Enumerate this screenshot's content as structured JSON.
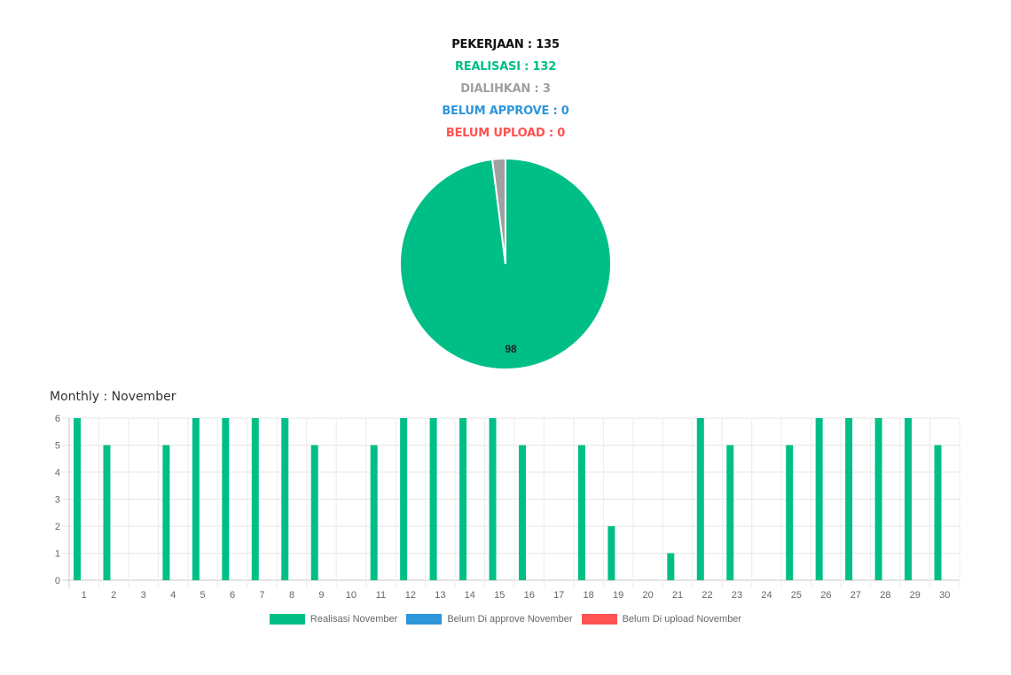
{
  "summary": {
    "pekerjaan": "PEKERJAAN : 135",
    "realisasi": "REALISASI : 132",
    "dialihkan": "DIALIHKAN : 3",
    "belum_approve": "BELUM APPROVE : 0",
    "belum_upload": "BELUM UPLOAD : 0"
  },
  "colors": {
    "realisasi": "#00bf86",
    "dialihkan": "#a0a0a0",
    "belum_approve": "#2d96db",
    "belum_upload": "#ff5252",
    "pekerjaan": "#111111"
  },
  "chart_data": [
    {
      "type": "pie",
      "slices": [
        {
          "name": "Realisasi",
          "value": 98,
          "label": "98",
          "color": "#00bf86"
        },
        {
          "name": "Dialihkan",
          "value": 2,
          "label": "",
          "color": "#a0a0a0"
        }
      ]
    },
    {
      "type": "bar",
      "title": "Monthly : November",
      "categories": [
        "1",
        "2",
        "3",
        "4",
        "5",
        "6",
        "7",
        "8",
        "9",
        "10",
        "11",
        "12",
        "13",
        "14",
        "15",
        "16",
        "17",
        "18",
        "19",
        "20",
        "21",
        "22",
        "23",
        "24",
        "25",
        "26",
        "27",
        "28",
        "29",
        "30"
      ],
      "series": [
        {
          "name": "Realisasi November",
          "color": "#00bf86",
          "values": [
            6,
            5,
            0,
            5,
            6,
            6,
            6,
            6,
            5,
            0,
            5,
            6,
            6,
            6,
            6,
            5,
            0,
            5,
            2,
            0,
            1,
            6,
            5,
            0,
            5,
            6,
            6,
            6,
            6,
            5
          ]
        },
        {
          "name": "Belum Di approve November",
          "color": "#2d96db",
          "values": [
            0,
            0,
            0,
            0,
            0,
            0,
            0,
            0,
            0,
            0,
            0,
            0,
            0,
            0,
            0,
            0,
            0,
            0,
            0,
            0,
            0,
            0,
            0,
            0,
            0,
            0,
            0,
            0,
            0,
            0
          ]
        },
        {
          "name": "Belum Di upload November",
          "color": "#ff5252",
          "values": [
            0,
            0,
            0,
            0,
            0,
            0,
            0,
            0,
            0,
            0,
            0,
            0,
            0,
            0,
            0,
            0,
            0,
            0,
            0,
            0,
            0,
            0,
            0,
            0,
            0,
            0,
            0,
            0,
            0,
            0
          ]
        }
      ],
      "yticks": [
        "0",
        "1",
        "2",
        "3",
        "4",
        "5",
        "6"
      ],
      "ylim": [
        0,
        6
      ],
      "grid": true,
      "legend": "bottom"
    }
  ]
}
